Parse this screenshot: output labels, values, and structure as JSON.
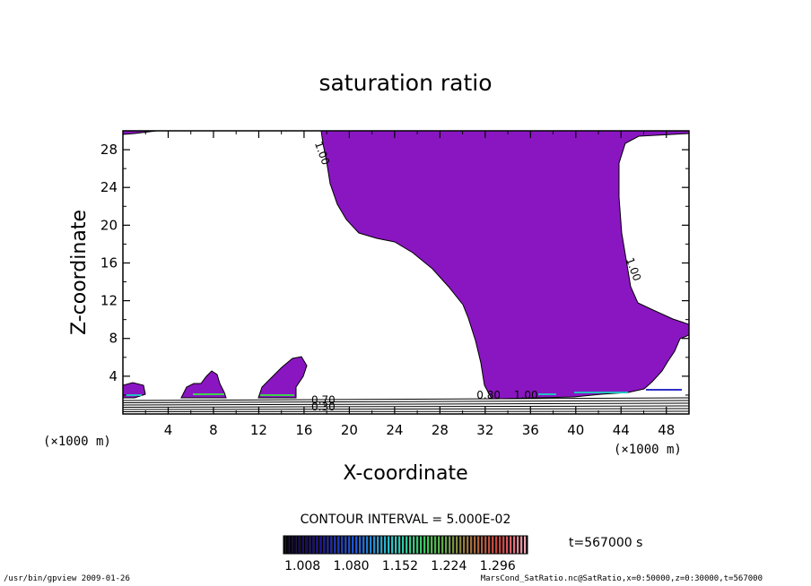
{
  "chart_data": {
    "type": "contour",
    "title": "saturation ratio",
    "xlabel": "X-coordinate",
    "ylabel": "Z-coordinate",
    "x_unit": "(×1000 m)",
    "y_unit": "(×1000 m)",
    "xlim": [
      0,
      50
    ],
    "ylim": [
      0,
      30
    ],
    "x_ticks": [
      4,
      8,
      12,
      16,
      20,
      24,
      28,
      32,
      36,
      40,
      44,
      48
    ],
    "y_ticks": [
      4,
      8,
      12,
      16,
      20,
      24,
      28
    ],
    "contour_labels": [
      {
        "text": "1.00",
        "x": 17.3,
        "y": 27.5
      },
      {
        "text": "1.00",
        "x": 44.8,
        "y": 15.2
      },
      {
        "text": "0.70",
        "x": 17.7,
        "y": 1.1
      },
      {
        "text": "0.30",
        "x": 17.7,
        "y": 0.4
      },
      {
        "text": "0.80",
        "x": 32.3,
        "y": 1.6
      },
      {
        "text": "1.00",
        "x": 35.6,
        "y": 1.6
      }
    ],
    "fill_color": "#8a16c2",
    "contour_interval": "CONTOUR INTERVAL = 5.000E-02",
    "time_label": "t=567000 s",
    "colorbar_ticks": [
      "1.008",
      "1.080",
      "1.152",
      "1.224",
      "1.296"
    ],
    "colorbar_range": [
      0.98,
      1.34
    ],
    "footer_left": "/usr/bin/gpview  2009-01-26",
    "footer_right": "MarsCond_SatRatio.nc@SatRatio,x=0:50000,z=0:30000,t=567000"
  }
}
